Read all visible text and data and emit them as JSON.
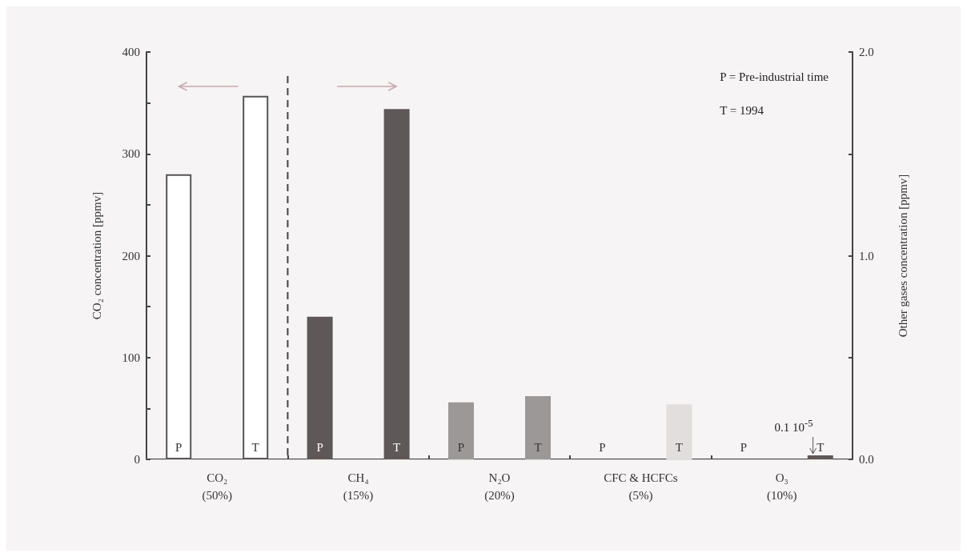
{
  "chart_data": {
    "type": "bar",
    "categories": [
      "CO₂\n(50%)",
      "CH₄\n(15%)",
      "N₂O\n(20%)",
      "CFC & HCFCs\n(5%)",
      "O₃\n(10%)"
    ],
    "ylabel": "CO₂ concentration [ppmv]",
    "y2label": "Other gases concentration [ppmv]",
    "ylim": [
      0,
      400
    ],
    "yticks": [
      0,
      {
        "value": 50,
        "label": null
      },
      100,
      {
        "value": 150,
        "label": null
      },
      200,
      {
        "value": 250,
        "label": null
      },
      300,
      {
        "value": 350,
        "label": null
      },
      400
    ],
    "y2lim": [
      0,
      2
    ],
    "y2ticks": [
      {
        "value": 0,
        "label": "0.0"
      },
      {
        "value": 0.5,
        "label": null
      },
      {
        "value": 1,
        "label": "1.0"
      },
      {
        "value": 1.5,
        "label": null
      },
      {
        "value": 2,
        "label": "2.0"
      }
    ],
    "series": [
      {
        "name": "P",
        "axis": "y",
        "colors": [
          "#ffffff",
          null,
          null,
          null,
          null
        ],
        "values": [
          280,
          null,
          null,
          null,
          null
        ]
      },
      {
        "name": "T",
        "axis": "y",
        "colors": [
          "#ffffff",
          null,
          null,
          null,
          null
        ],
        "values": [
          357,
          null,
          null,
          null,
          null
        ]
      },
      {
        "name": "P",
        "axis": "y2",
        "colors": [
          null,
          "#5e5858",
          "#9c9898",
          "#e2dede",
          "#5e5858"
        ],
        "values": [
          null,
          0.7,
          0.28,
          0,
          0
        ]
      },
      {
        "name": "T",
        "axis": "y2",
        "colors": [
          null,
          "#5e5858",
          "#9c9898",
          "#e2dede",
          "#5e5858"
        ],
        "values": [
          null,
          1.72,
          0.31,
          0.27,
          0.02
        ]
      }
    ],
    "annotations": [
      "P = Pre-industrial time",
      "T = 1994",
      {
        "text": "0.1 10$^{-5}$",
        "x": "O₃\n(10%)",
        "y": 0.02
      }
    ],
    "grid": false
  }
}
